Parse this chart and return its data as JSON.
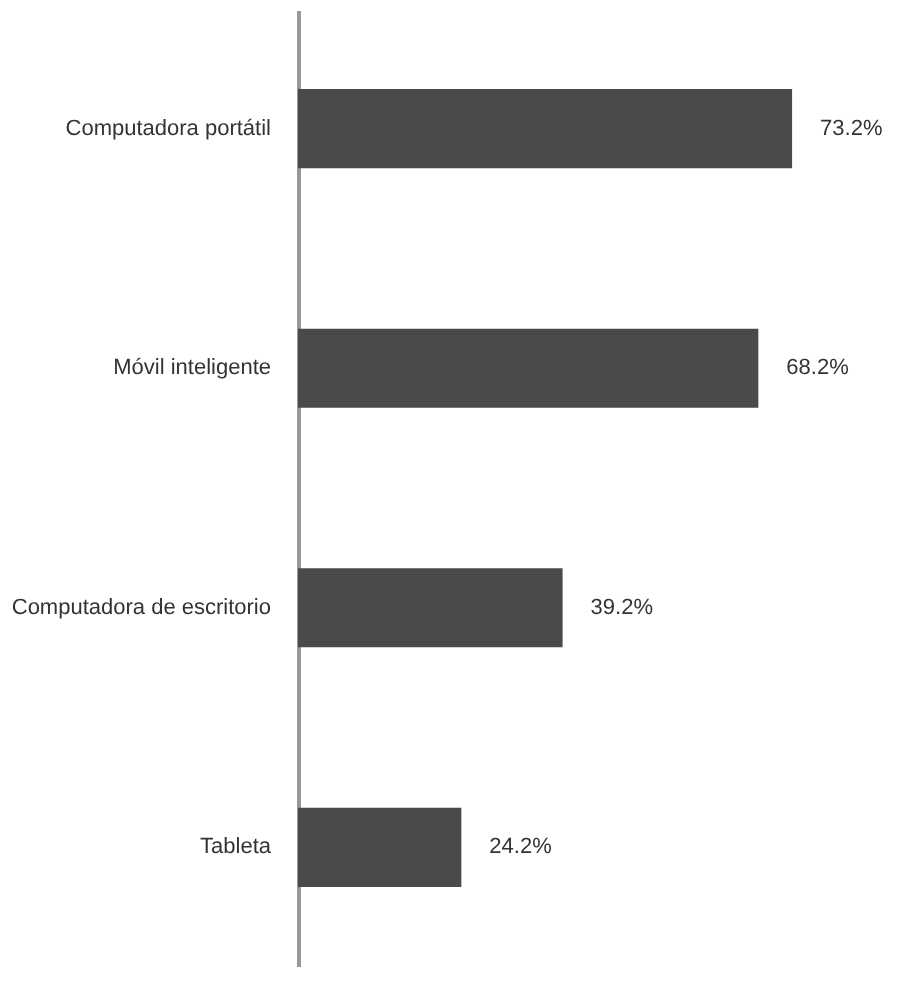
{
  "chart_data": {
    "type": "bar",
    "orientation": "horizontal",
    "categories": [
      "Computadora portátil",
      "Móvil inteligente",
      "Computadora de escritorio",
      "Tableta"
    ],
    "values": [
      73.2,
      68.2,
      39.2,
      24.2
    ],
    "color": "#4a4a4a",
    "value_labels": [
      "73.2%",
      "68.2%",
      "39.2%",
      "24.2%"
    ]
  }
}
